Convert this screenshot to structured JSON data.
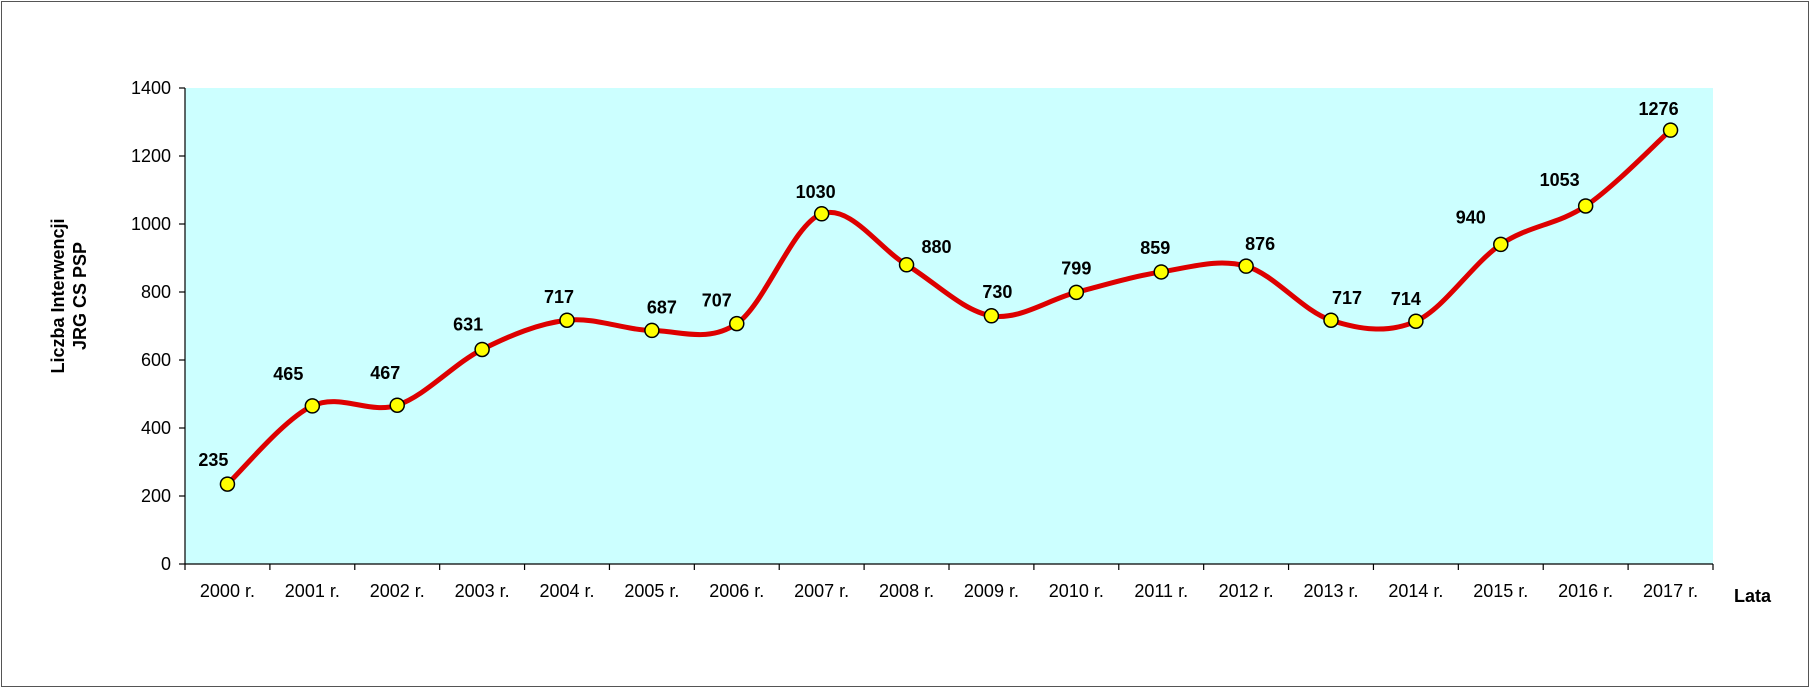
{
  "chart_data": {
    "type": "line",
    "smooth": true,
    "categories": [
      "2000 r.",
      "2001 r.",
      "2002 r.",
      "2003 r.",
      "2004 r.",
      "2005 r.",
      "2006 r.",
      "2007 r.",
      "2008 r.",
      "2009 r.",
      "2010 r.",
      "2011 r.",
      "2012 r.",
      "2013 r.",
      "2014 r.",
      "2015 r.",
      "2016 r.",
      "2017 r."
    ],
    "series": [
      {
        "values": [
          235,
          465,
          467,
          631,
          717,
          687,
          707,
          1030,
          880,
          730,
          799,
          859,
          876,
          717,
          714,
          940,
          1053,
          1276
        ]
      }
    ],
    "data_labels": [
      "235",
      "465",
      "467",
      "631",
      "717",
      "687",
      "707",
      "1030",
      "880",
      "730",
      "799",
      "859",
      "876",
      "717",
      "714",
      "940",
      "1053",
      "1276"
    ],
    "yticks": [
      "0",
      "200",
      "400",
      "600",
      "800",
      "1000",
      "1200",
      "1400"
    ],
    "ylim": [
      0,
      1400
    ],
    "ylabel_line1": "Liczba Interwencji",
    "ylabel_line2": "JRG CS PSP",
    "xlabel": "Lata",
    "grid": false,
    "legend": "none",
    "colors": {
      "plot_background": "#ccffff",
      "line": "#dd0000",
      "marker_fill": "#ffff00",
      "marker_stroke": "#000000",
      "axis": "#000000",
      "frame": "#555555"
    }
  }
}
